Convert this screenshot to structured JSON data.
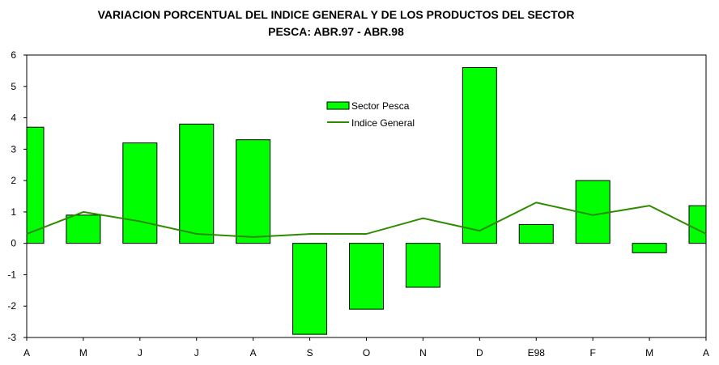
{
  "chart_data": {
    "type": "bar",
    "title_line1": "VARIACION PORCENTUAL DEL INDICE GENERAL Y DE LOS PRODUCTOS DEL SECTOR",
    "title_line2": "PESCA: ABR.97 - ABR.98",
    "xlabel": "",
    "ylabel": "",
    "categories": [
      "A",
      "M",
      "J",
      "J",
      "A",
      "S",
      "O",
      "N",
      "D",
      "E98",
      "F",
      "M",
      "A"
    ],
    "ylim": [
      -3,
      6
    ],
    "yticks": [
      -3,
      -2,
      -1,
      0,
      1,
      2,
      3,
      4,
      5,
      6
    ],
    "grid": false,
    "legend_position": "top-center",
    "series": [
      {
        "name": "Sector Pesca",
        "kind": "bar",
        "color": "#00ff00",
        "values": [
          3.7,
          0.9,
          3.2,
          3.8,
          3.3,
          -2.9,
          -2.1,
          -1.4,
          5.6,
          0.6,
          2.0,
          -0.3,
          1.2
        ]
      },
      {
        "name": "Indice General",
        "kind": "line",
        "color": "#2e8b00",
        "values": [
          0.3,
          1.0,
          0.7,
          0.3,
          0.2,
          0.3,
          0.3,
          0.8,
          0.4,
          1.3,
          0.9,
          1.2,
          0.3
        ]
      }
    ]
  }
}
